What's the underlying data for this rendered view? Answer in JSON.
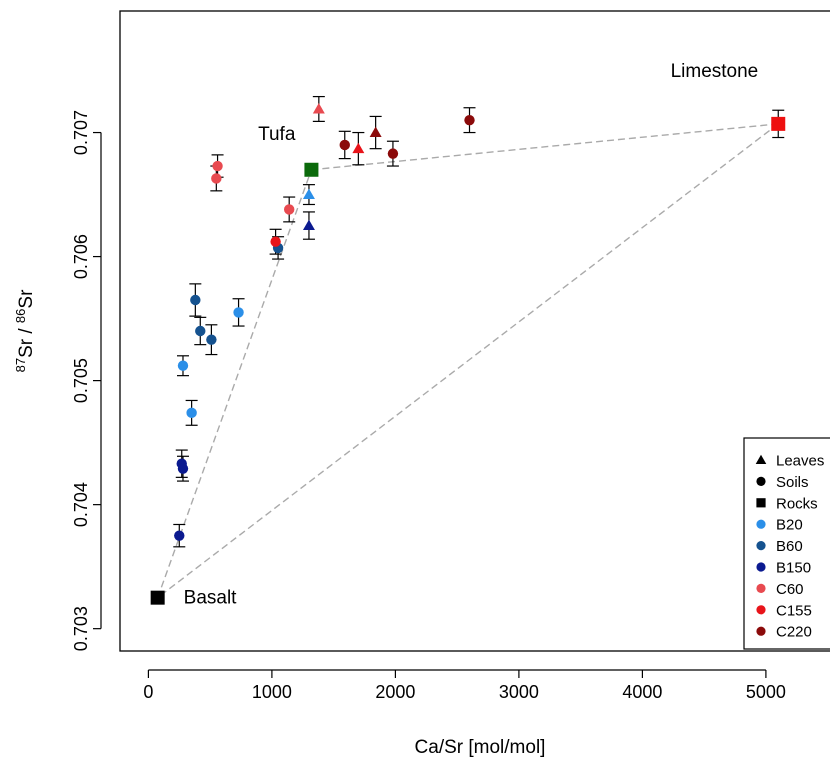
{
  "chart_data": {
    "type": "scatter",
    "title": "",
    "xlabel": "Ca/Sr [mol/mol]",
    "ylabel": {
      "pre": "87",
      "mid": "Sr / ",
      "sup2": "86",
      "post": "Sr"
    },
    "xlim": [
      -230,
      5600
    ],
    "ylim": [
      0.70282,
      0.70798
    ],
    "xticks": [
      0,
      1000,
      2000,
      3000,
      4000,
      5000
    ],
    "yticks": [
      0.703,
      0.704,
      0.705,
      0.706,
      0.707
    ],
    "ytick_labels": [
      "0.703",
      "0.704",
      "0.705",
      "0.706",
      "0.707"
    ],
    "colors": {
      "B20": "#2b8fe8",
      "B60": "#15528f",
      "B150": "#0b1a90",
      "C60": "#e84a50",
      "C155": "#e8141a",
      "C220": "#8b0a0a",
      "Tufa": "#0b6a0b",
      "Limestone": "#ee1010",
      "Basalt": "#000000",
      "mixing_line": "#aaaaaa"
    },
    "mixing_lines": [
      {
        "from": "Basalt",
        "to": "Tufa"
      },
      {
        "from": "Tufa",
        "to": "Limestone"
      },
      {
        "from": "Limestone",
        "to": "Basalt"
      }
    ],
    "rocks": [
      {
        "name": "Basalt",
        "label": "Basalt",
        "x": 75,
        "y": 0.70325,
        "label_pos": "right"
      },
      {
        "name": "Tufa",
        "label": "Tufa",
        "x": 1320,
        "y": 0.7067,
        "label_pos": "upper-left"
      },
      {
        "name": "Limestone",
        "label": "Limestone",
        "x": 5100,
        "y": 0.70707,
        "err": 0.00011,
        "label_pos": "upper-left"
      }
    ],
    "points": [
      {
        "group": "B20",
        "type": "soil",
        "x": 280,
        "y": 0.70512,
        "err": 8e-05
      },
      {
        "group": "B20",
        "type": "soil",
        "x": 350,
        "y": 0.70474,
        "err": 0.0001
      },
      {
        "group": "B20",
        "type": "soil",
        "x": 730,
        "y": 0.70555,
        "err": 0.00011
      },
      {
        "group": "B20",
        "type": "leaf",
        "x": 1300,
        "y": 0.7065,
        "err": 8e-05
      },
      {
        "group": "B60",
        "type": "soil",
        "x": 380,
        "y": 0.70565,
        "err": 0.00013
      },
      {
        "group": "B60",
        "type": "soil",
        "x": 420,
        "y": 0.7054,
        "err": 0.00011
      },
      {
        "group": "B60",
        "type": "soil",
        "x": 510,
        "y": 0.70533,
        "err": 0.00012
      },
      {
        "group": "B60",
        "type": "soil",
        "x": 1050,
        "y": 0.70607,
        "err": 9e-05
      },
      {
        "group": "B150",
        "type": "soil",
        "x": 250,
        "y": 0.70375,
        "err": 9e-05
      },
      {
        "group": "B150",
        "type": "soil",
        "x": 270,
        "y": 0.70433,
        "err": 0.00011
      },
      {
        "group": "B150",
        "type": "soil",
        "x": 280,
        "y": 0.70429,
        "err": 0.0001
      },
      {
        "group": "B150",
        "type": "leaf",
        "x": 1300,
        "y": 0.70625,
        "err": 0.00011
      },
      {
        "group": "C60",
        "type": "soil",
        "x": 560,
        "y": 0.70673,
        "err": 9e-05
      },
      {
        "group": "C60",
        "type": "soil",
        "x": 550,
        "y": 0.70663,
        "err": 0.0001
      },
      {
        "group": "C60",
        "type": "soil",
        "x": 1140,
        "y": 0.70638,
        "err": 0.0001
      },
      {
        "group": "C60",
        "type": "leaf",
        "x": 1380,
        "y": 0.70719,
        "err": 0.0001
      },
      {
        "group": "C155",
        "type": "soil",
        "x": 1030,
        "y": 0.70612,
        "err": 0.0001
      },
      {
        "group": "C155",
        "type": "leaf",
        "x": 1700,
        "y": 0.70687,
        "err": 0.00013
      },
      {
        "group": "C220",
        "type": "soil",
        "x": 1590,
        "y": 0.7069,
        "err": 0.00011
      },
      {
        "group": "C220",
        "type": "soil",
        "x": 1980,
        "y": 0.70683,
        "err": 0.0001
      },
      {
        "group": "C220",
        "type": "soil",
        "x": 2600,
        "y": 0.7071,
        "err": 0.0001
      },
      {
        "group": "C220",
        "type": "leaf",
        "x": 1840,
        "y": 0.707,
        "err": 0.00013
      }
    ],
    "legend": {
      "placement": "bottom-right",
      "entries": [
        {
          "label": "Leaves",
          "shape": "triangle",
          "color": "#000000"
        },
        {
          "label": "Soils",
          "shape": "circle",
          "color": "#000000"
        },
        {
          "label": "Rocks",
          "shape": "square",
          "color": "#000000"
        },
        {
          "label": "B20",
          "shape": "circle",
          "color": "#2b8fe8"
        },
        {
          "label": "B60",
          "shape": "circle",
          "color": "#15528f"
        },
        {
          "label": "B150",
          "shape": "circle",
          "color": "#0b1a90"
        },
        {
          "label": "C60",
          "shape": "circle",
          "color": "#e84a50"
        },
        {
          "label": "C155",
          "shape": "circle",
          "color": "#e8141a"
        },
        {
          "label": "C220",
          "shape": "circle",
          "color": "#8b0a0a"
        }
      ]
    }
  }
}
